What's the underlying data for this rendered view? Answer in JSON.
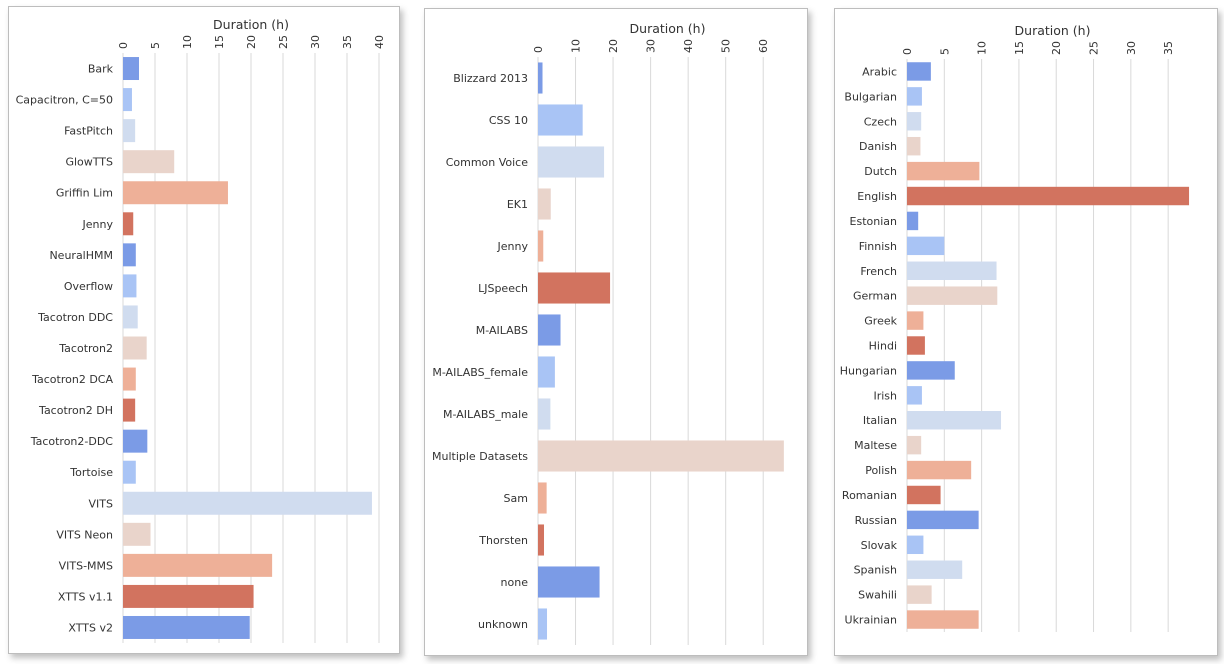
{
  "chart_data": [
    {
      "type": "bar",
      "orientation": "horizontal",
      "xlabel": "Duration (h)",
      "ylabel": "",
      "xlim": [
        0,
        40
      ],
      "ticks": [
        0,
        5,
        10,
        15,
        20,
        25,
        30,
        35,
        40
      ],
      "grid": true,
      "categories": [
        "Bark",
        "Capacitron, C=50",
        "FastPitch",
        "GlowTTS",
        "Griffin Lim",
        "Jenny",
        "NeuralHMM",
        "Overflow",
        "Tacotron DDC",
        "Tacotron2",
        "Tacotron2 DCA",
        "Tacotron2 DH",
        "Tacotron2-DDC",
        "Tortoise",
        "VITS",
        "VITS Neon",
        "VITS-MMS",
        "XTTS v1.1",
        "XTTS v2"
      ],
      "values": [
        2.5,
        1.4,
        1.9,
        8.0,
        16.4,
        1.6,
        2.0,
        2.1,
        2.3,
        3.7,
        2.0,
        1.9,
        3.8,
        2.0,
        38.9,
        4.3,
        23.3,
        20.4,
        19.8
      ],
      "colors": [
        "#7b9be6",
        "#a9c4f5",
        "#d0dcef",
        "#e9d4cb",
        "#eeb098",
        "#d2735f",
        "#7b9be6",
        "#a9c4f5",
        "#d0dcef",
        "#e9d4cb",
        "#eeb098",
        "#d2735f",
        "#7b9be6",
        "#a9c4f5",
        "#d0dcef",
        "#e9d4cb",
        "#eeb098",
        "#d2735f",
        "#7b9be6"
      ]
    },
    {
      "type": "bar",
      "orientation": "horizontal",
      "xlabel": "Duration (h)",
      "ylabel": "",
      "xlim": [
        0,
        69
      ],
      "ticks": [
        0,
        10,
        20,
        30,
        40,
        50,
        60
      ],
      "grid": true,
      "categories": [
        "Blizzard 2013",
        "CSS 10",
        "Common Voice",
        "EK1",
        "Jenny",
        "LJSpeech",
        "M-AILABS",
        "M-AILABS_female",
        "M-AILABS_male",
        "Multiple Datasets",
        "Sam",
        "Thorsten",
        "none",
        "unknown"
      ],
      "values": [
        1.2,
        11.9,
        17.6,
        3.4,
        1.4,
        19.2,
        6.0,
        4.5,
        3.3,
        65.5,
        2.3,
        1.6,
        16.4,
        2.4
      ],
      "colors": [
        "#7b9be6",
        "#a9c4f5",
        "#d0dcef",
        "#e9d4cb",
        "#eeb098",
        "#d2735f",
        "#7b9be6",
        "#a9c4f5",
        "#d0dcef",
        "#e9d4cb",
        "#eeb098",
        "#d2735f",
        "#7b9be6",
        "#a9c4f5"
      ]
    },
    {
      "type": "bar",
      "orientation": "horizontal",
      "xlabel": "Duration (h)",
      "ylabel": "",
      "xlim": [
        0,
        39
      ],
      "ticks": [
        0,
        5,
        10,
        15,
        20,
        25,
        30,
        35
      ],
      "grid": true,
      "categories": [
        "Arabic",
        "Bulgarian",
        "Czech",
        "Danish",
        "Dutch",
        "English",
        "Estonian",
        "Finnish",
        "French",
        "German",
        "Greek",
        "Hindi",
        "Hungarian",
        "Irish",
        "Italian",
        "Maltese",
        "Polish",
        "Romanian",
        "Russian",
        "Slovak",
        "Spanish",
        "Swahili",
        "Ukrainian"
      ],
      "values": [
        3.2,
        2.0,
        1.9,
        1.8,
        9.7,
        37.8,
        1.5,
        5.0,
        12.0,
        12.1,
        2.2,
        2.4,
        6.4,
        2.0,
        12.6,
        1.9,
        8.6,
        4.5,
        9.6,
        2.2,
        7.4,
        3.3,
        9.6
      ],
      "colors": [
        "#7b9be6",
        "#a9c4f5",
        "#d0dcef",
        "#e9d4cb",
        "#eeb098",
        "#d2735f",
        "#7b9be6",
        "#a9c4f5",
        "#d0dcef",
        "#e9d4cb",
        "#eeb098",
        "#d2735f",
        "#7b9be6",
        "#a9c4f5",
        "#d0dcef",
        "#e9d4cb",
        "#eeb098",
        "#d2735f",
        "#7b9be6",
        "#a9c4f5",
        "#d0dcef",
        "#e9d4cb",
        "#eeb098"
      ]
    }
  ]
}
